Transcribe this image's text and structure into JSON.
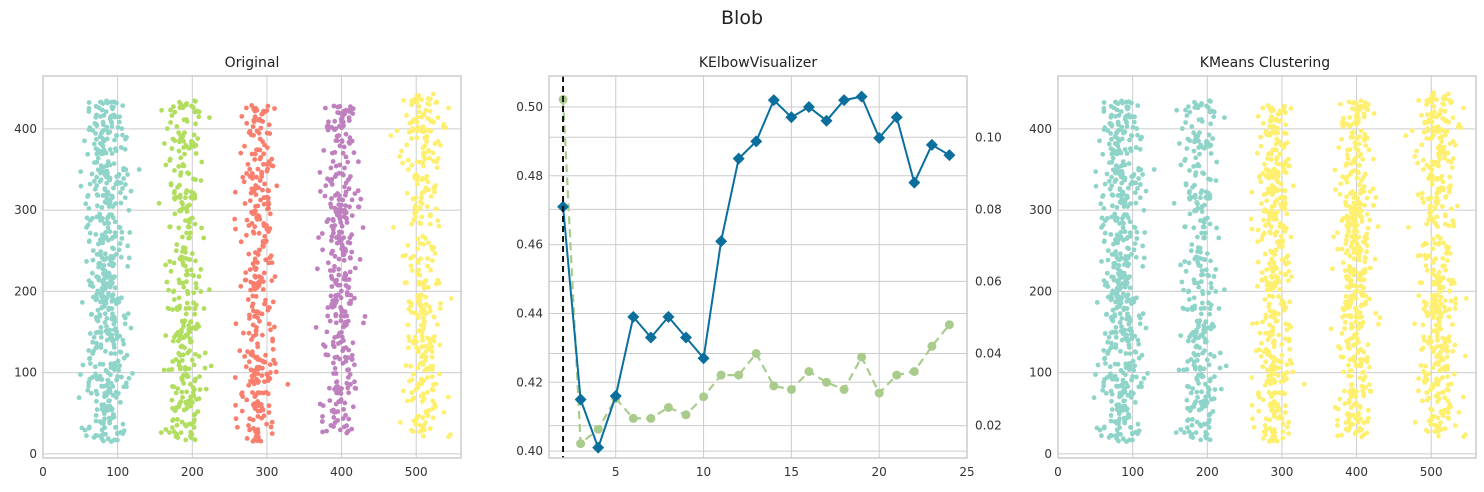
{
  "figure": {
    "suptitle": "Blob"
  },
  "chart_data": [
    {
      "type": "scatter",
      "title": "Original",
      "xlim": [
        0,
        560
      ],
      "ylim": [
        -5,
        465
      ],
      "xticks": [
        0,
        100,
        200,
        300,
        400,
        500
      ],
      "yticks": [
        0,
        100,
        200,
        300,
        400
      ],
      "grid": true,
      "clusters": [
        {
          "x_center": 85,
          "x_spread": 25,
          "y_range": [
            15,
            435
          ],
          "count": 520,
          "color": "#8fd4c9"
        },
        {
          "x_center": 190,
          "x_spread": 22,
          "y_range": [
            15,
            435
          ],
          "count": 330,
          "color": "#b2de5f"
        },
        {
          "x_center": 288,
          "x_spread": 20,
          "y_range": [
            15,
            430
          ],
          "count": 330,
          "color": "#fa7e6e"
        },
        {
          "x_center": 398,
          "x_spread": 20,
          "y_range": [
            25,
            430
          ],
          "count": 330,
          "color": "#bf80bf"
        },
        {
          "x_center": 508,
          "x_spread": 25,
          "y_range": [
            20,
            445
          ],
          "count": 330,
          "color": "#feef6f"
        }
      ]
    },
    {
      "type": "line",
      "title": "KElbowVisualizer",
      "xlim": [
        1.2,
        25
      ],
      "ylim": [
        0.398,
        0.509
      ],
      "y2lim": [
        0.011,
        0.117
      ],
      "xticks": [
        5,
        10,
        15,
        20,
        25
      ],
      "yticks": [
        0.4,
        0.42,
        0.44,
        0.46,
        0.48,
        0.5
      ],
      "y2ticks": [
        0.02,
        0.04,
        0.06,
        0.08,
        0.1
      ],
      "yticklabels": [
        "0.40",
        "0.42",
        "0.44",
        "0.46",
        "0.48",
        "0.50"
      ],
      "y2ticklabels": [
        "0.02",
        "0.04",
        "0.06",
        "0.08",
        "0.10"
      ],
      "elbow_x": 2,
      "grid": true,
      "series": [
        {
          "axis": "left",
          "marker": "diamond",
          "color": "#0b6f9e",
          "x": [
            2,
            3,
            4,
            5,
            6,
            7,
            8,
            9,
            10,
            11,
            12,
            13,
            14,
            15,
            16,
            17,
            18,
            19,
            20,
            21,
            22,
            23,
            24
          ],
          "values": [
            0.471,
            0.415,
            0.401,
            0.416,
            0.439,
            0.433,
            0.439,
            0.433,
            0.427,
            0.461,
            0.485,
            0.49,
            0.502,
            0.497,
            0.5,
            0.496,
            0.502,
            0.503,
            0.491,
            0.497,
            0.478,
            0.489,
            0.486
          ]
        },
        {
          "axis": "right",
          "marker": "circle",
          "dashed": true,
          "color": "#a9cc8c",
          "x": [
            2,
            3,
            4,
            5,
            6,
            7,
            8,
            9,
            10,
            11,
            12,
            13,
            14,
            15,
            16,
            17,
            18,
            19,
            20,
            21,
            22,
            23,
            24
          ],
          "values": [
            0.1105,
            0.015,
            0.019,
            0.0275,
            0.022,
            0.022,
            0.025,
            0.023,
            0.028,
            0.034,
            0.034,
            0.04,
            0.031,
            0.03,
            0.035,
            0.032,
            0.03,
            0.039,
            0.029,
            0.034,
            0.035,
            0.042,
            0.048
          ]
        }
      ]
    },
    {
      "type": "scatter",
      "title": "KMeans Clustering",
      "xlim": [
        0,
        560
      ],
      "ylim": [
        -5,
        465
      ],
      "xticks": [
        0,
        100,
        200,
        300,
        400,
        500
      ],
      "yticks": [
        0,
        100,
        200,
        300,
        400
      ],
      "grid": true,
      "clusters": [
        {
          "x_center": 85,
          "x_spread": 25,
          "y_range": [
            15,
            435
          ],
          "count": 520,
          "color": "#8fd4c9"
        },
        {
          "x_center": 190,
          "x_spread": 22,
          "y_range": [
            15,
            435
          ],
          "count": 330,
          "color": "#8fd4c9"
        },
        {
          "x_center": 290,
          "x_spread": 20,
          "y_range": [
            15,
            430
          ],
          "count": 420,
          "color": "#feef6f"
        },
        {
          "x_center": 398,
          "x_spread": 20,
          "y_range": [
            20,
            435
          ],
          "count": 420,
          "color": "#feef6f"
        },
        {
          "x_center": 508,
          "x_spread": 25,
          "y_range": [
            20,
            445
          ],
          "count": 420,
          "color": "#feef6f"
        }
      ]
    }
  ]
}
